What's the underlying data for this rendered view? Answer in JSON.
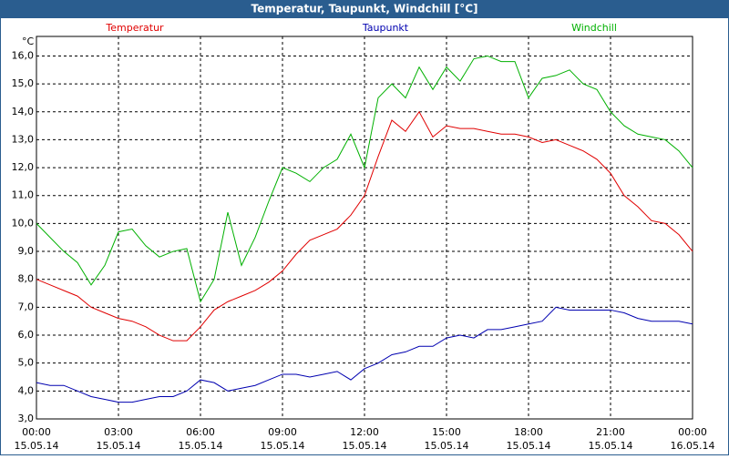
{
  "chart_data": {
    "type": "line",
    "title": "Temperatur, Taupunkt, Windchill [°C]",
    "y_unit": "°C",
    "x": [
      0,
      0.5,
      1,
      1.5,
      2,
      2.5,
      3,
      3.5,
      4,
      4.5,
      5,
      5.5,
      6,
      6.5,
      7,
      7.5,
      8,
      8.5,
      9,
      9.5,
      10,
      10.5,
      11,
      11.5,
      12,
      12.5,
      13,
      13.5,
      14,
      14.5,
      15,
      15.5,
      16,
      16.5,
      17,
      17.5,
      18,
      18.5,
      19,
      19.5,
      20,
      20.5,
      21,
      21.5,
      22,
      22.5,
      23,
      23.5,
      24
    ],
    "xlim": [
      0,
      24
    ],
    "xticks": [
      {
        "value": 0,
        "label": "00:00",
        "date": "15.05.14"
      },
      {
        "value": 3,
        "label": "03:00",
        "date": "15.05.14"
      },
      {
        "value": 6,
        "label": "06:00",
        "date": "15.05.14"
      },
      {
        "value": 9,
        "label": "09:00",
        "date": "15.05.14"
      },
      {
        "value": 12,
        "label": "12:00",
        "date": "15.05.14"
      },
      {
        "value": 15,
        "label": "15:00",
        "date": "15.05.14"
      },
      {
        "value": 18,
        "label": "18:00",
        "date": "15.05.14"
      },
      {
        "value": 21,
        "label": "21:00",
        "date": "15.05.14"
      },
      {
        "value": 24,
        "label": "00:00",
        "date": "16.05.14"
      }
    ],
    "ylim": [
      3,
      16.7
    ],
    "yticks": [
      {
        "value": 3,
        "label": "3,0"
      },
      {
        "value": 4,
        "label": "4,0"
      },
      {
        "value": 5,
        "label": "5,0"
      },
      {
        "value": 6,
        "label": "6,0"
      },
      {
        "value": 7,
        "label": "7,0"
      },
      {
        "value": 8,
        "label": "8,0"
      },
      {
        "value": 9,
        "label": "9,0"
      },
      {
        "value": 10,
        "label": "10,0"
      },
      {
        "value": 11,
        "label": "11,0"
      },
      {
        "value": 12,
        "label": "12,0"
      },
      {
        "value": 13,
        "label": "13,0"
      },
      {
        "value": 14,
        "label": "14,0"
      },
      {
        "value": 15,
        "label": "15,0"
      },
      {
        "value": 16,
        "label": "16,0"
      }
    ],
    "grid": true,
    "series": [
      {
        "name": "Temperatur",
        "color": "#e00000",
        "values": [
          8.0,
          7.8,
          7.6,
          7.4,
          7.0,
          6.8,
          6.6,
          6.5,
          6.3,
          6.0,
          5.8,
          5.8,
          6.3,
          6.9,
          7.2,
          7.4,
          7.6,
          7.9,
          8.3,
          8.9,
          9.4,
          9.6,
          9.8,
          10.3,
          11.0,
          12.4,
          13.7,
          13.3,
          14.0,
          13.1,
          13.5,
          13.4,
          13.4,
          13.3,
          13.2,
          13.2,
          13.1,
          12.9,
          13.0,
          12.8,
          12.6,
          12.3,
          11.8,
          11.0,
          10.6,
          10.1,
          10.0,
          9.6,
          9.0
        ]
      },
      {
        "name": "Taupunkt",
        "color": "#0000b0",
        "values": [
          4.3,
          4.2,
          4.2,
          4.0,
          3.8,
          3.7,
          3.6,
          3.6,
          3.7,
          3.8,
          3.8,
          4.0,
          4.4,
          4.3,
          4.0,
          4.1,
          4.2,
          4.4,
          4.6,
          4.6,
          4.5,
          4.6,
          4.7,
          4.4,
          4.8,
          5.0,
          5.3,
          5.4,
          5.6,
          5.6,
          5.9,
          6.0,
          5.9,
          6.2,
          6.2,
          6.3,
          6.4,
          6.5,
          7.0,
          6.9,
          6.9,
          6.9,
          6.9,
          6.8,
          6.6,
          6.5,
          6.5,
          6.5,
          6.4
        ]
      },
      {
        "name": "Windchill",
        "color": "#00b000",
        "values": [
          10.0,
          9.5,
          9.0,
          8.6,
          7.8,
          8.5,
          9.7,
          9.8,
          9.2,
          8.8,
          9.0,
          9.1,
          7.2,
          8.0,
          10.4,
          8.5,
          9.5,
          10.8,
          12.0,
          11.8,
          11.5,
          12.0,
          12.3,
          13.2,
          12.0,
          14.5,
          15.0,
          14.5,
          15.6,
          14.8,
          15.6,
          15.1,
          15.9,
          16.0,
          15.8,
          15.8,
          14.5,
          15.2,
          15.3,
          15.5,
          15.0,
          14.8,
          14.0,
          13.5,
          13.2,
          13.1,
          13.0,
          12.6,
          12.0
        ]
      }
    ]
  }
}
